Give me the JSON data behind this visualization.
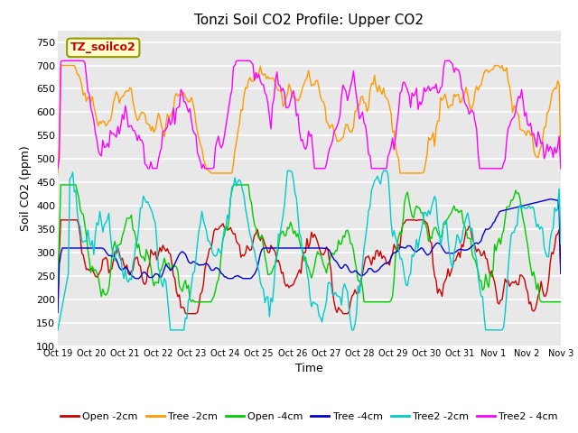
{
  "title": "Tonzi Soil CO2 Profile: Upper CO2",
  "ylabel": "Soil CO2 (ppm)",
  "xlabel": "Time",
  "ylim": [
    100,
    775
  ],
  "yticks": [
    100,
    150,
    200,
    250,
    300,
    350,
    400,
    450,
    500,
    550,
    600,
    650,
    700,
    750
  ],
  "xtick_labels": [
    "Oct 19",
    "Oct 20",
    "Oct 21",
    "Oct 22",
    "Oct 23",
    "Oct 24",
    "Oct 25",
    "Oct 26",
    "Oct 27",
    "Oct 28",
    "Oct 29",
    "Oct 30",
    "Oct 31",
    "Nov 1",
    "Nov 2",
    "Nov 3"
  ],
  "series_colors": {
    "Open -2cm": "#cc0000",
    "Tree -2cm": "#ff9900",
    "Open -4cm": "#00cc00",
    "Tree -4cm": "#0000cc",
    "Tree2 -2cm": "#00cccc",
    "Tree2 - 4cm": "#ff00ff"
  },
  "annotation_text": "TZ_soilco2",
  "annotation_color": "#cc0000",
  "annotation_bg": "#ffffcc",
  "annotation_border": "#999900",
  "fig_bg": "#ffffff",
  "plot_bg": "#e8e8e8",
  "grid_color": "#ffffff",
  "n_points": 336
}
